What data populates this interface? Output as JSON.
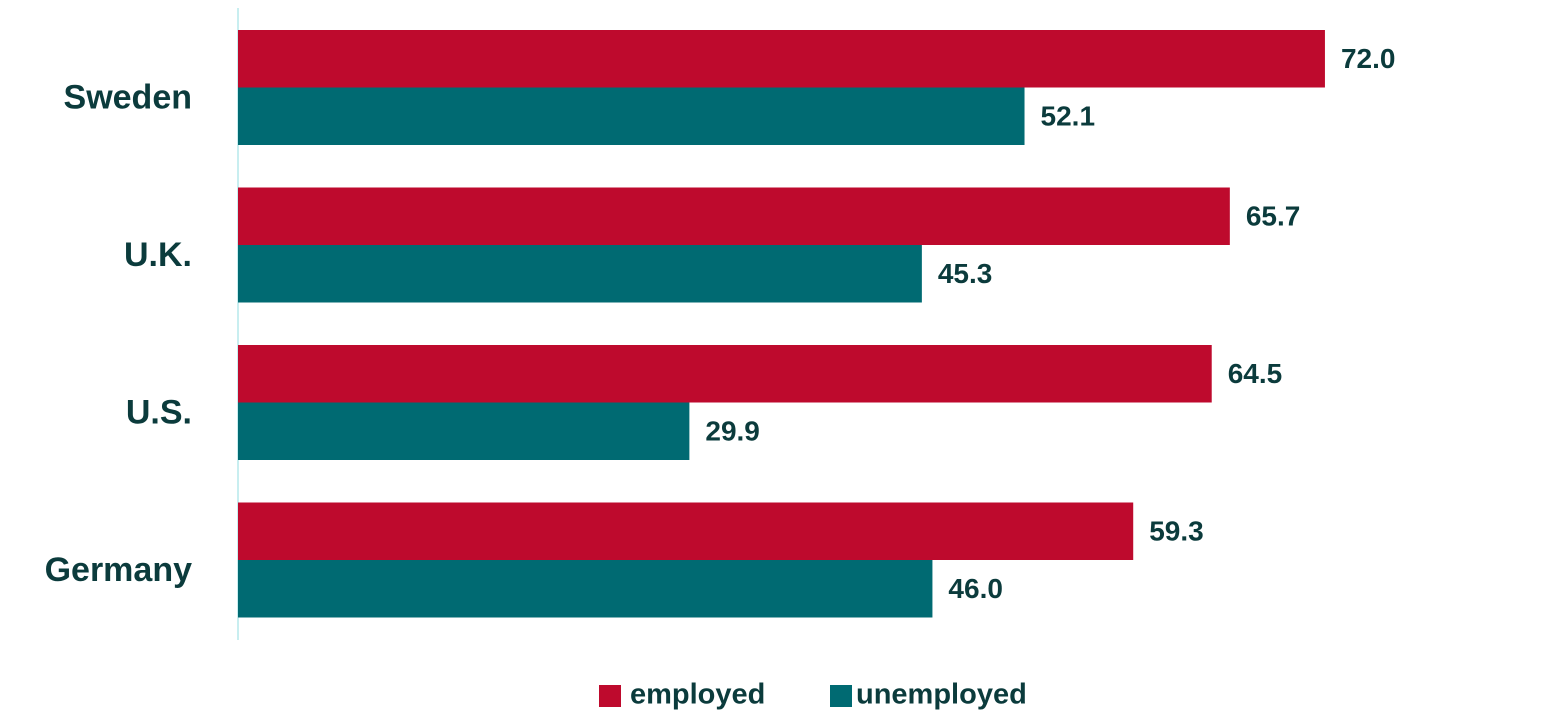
{
  "chart_data": {
    "type": "bar",
    "orientation": "horizontal",
    "categories": [
      "Sweden",
      "U.K.",
      "U.S.",
      "Germany"
    ],
    "series": [
      {
        "name": "employed",
        "color": "#be0a2d",
        "values": [
          72.0,
          65.7,
          64.5,
          59.3
        ],
        "labels": [
          "72.0",
          "65.7",
          "64.5",
          "59.3"
        ]
      },
      {
        "name": "unemployed",
        "color": "#006a72",
        "values": [
          52.1,
          45.3,
          29.9,
          46.0
        ],
        "labels": [
          "52.1",
          "45.3",
          "29.9",
          "46.0"
        ]
      }
    ],
    "title": "",
    "xlabel": "",
    "ylabel": "",
    "xlim": [
      0,
      72.6
    ],
    "grid": false,
    "legend_position": "bottom",
    "axis_color": "#c8eef0",
    "label_color": "#0b3b3c"
  }
}
